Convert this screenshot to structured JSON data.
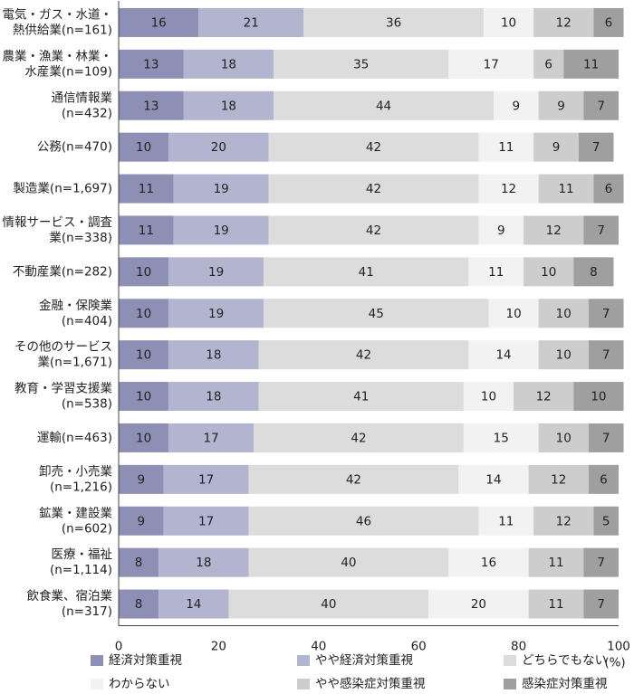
{
  "chart_data": {
    "type": "bar",
    "orientation": "horizontal",
    "stacked": true,
    "categories": [
      [
        "電気・ガス・水道・",
        "熱供給業(n=161)"
      ],
      [
        "農業・漁業・林業・",
        "水産業(n=109)"
      ],
      [
        "通信情報業",
        "(n=432)"
      ],
      [
        "公務(n=470)"
      ],
      [
        "製造業(n=1,697)"
      ],
      [
        "情報サービス・調査",
        "業(n=338)"
      ],
      [
        "不動産業(n=282)"
      ],
      [
        "金融・保険業",
        "(n=404)"
      ],
      [
        "その他のサービス",
        "業(n=1,671)"
      ],
      [
        "教育・学習支援業",
        "(n=538)"
      ],
      [
        "運輸(n=463)"
      ],
      [
        "卸売・小売業",
        "(n=1,216)"
      ],
      [
        "鉱業・建設業",
        "(n=602)"
      ],
      [
        "医療・福祉",
        "(n=1,114)"
      ],
      [
        "飲食業、宿泊業",
        "(n=317)"
      ]
    ],
    "series": [
      {
        "name": "経済対策重視",
        "color": "#8e8fb5",
        "values": [
          16,
          13,
          13,
          10,
          11,
          11,
          10,
          10,
          10,
          10,
          10,
          9,
          9,
          8,
          8
        ]
      },
      {
        "name": "やや経済対策重視",
        "color": "#b3b4d0",
        "values": [
          21,
          18,
          18,
          20,
          19,
          19,
          19,
          19,
          18,
          18,
          17,
          17,
          17,
          18,
          14
        ]
      },
      {
        "name": "どちらでもない",
        "color": "#dcdcdc",
        "values": [
          36,
          35,
          44,
          42,
          42,
          42,
          41,
          45,
          42,
          41,
          42,
          42,
          46,
          40,
          40
        ]
      },
      {
        "name": "わからない",
        "color": "#f2f2f2",
        "values": [
          10,
          17,
          9,
          11,
          12,
          9,
          11,
          10,
          14,
          10,
          15,
          14,
          11,
          16,
          20
        ]
      },
      {
        "name": "やや感染症対策重視",
        "color": "#cdcdcd",
        "values": [
          12,
          6,
          9,
          9,
          11,
          12,
          10,
          10,
          10,
          12,
          10,
          12,
          12,
          11,
          11
        ]
      },
      {
        "name": "感染症対策重視",
        "color": "#9f9f9f",
        "values": [
          6,
          11,
          7,
          7,
          6,
          7,
          8,
          7,
          7,
          10,
          7,
          6,
          5,
          7,
          7
        ]
      }
    ],
    "xlim": [
      0,
      100
    ],
    "xticks": [
      0,
      20,
      40,
      60,
      80,
      100
    ],
    "xunit": "(%)",
    "legend_position": "bottom"
  }
}
